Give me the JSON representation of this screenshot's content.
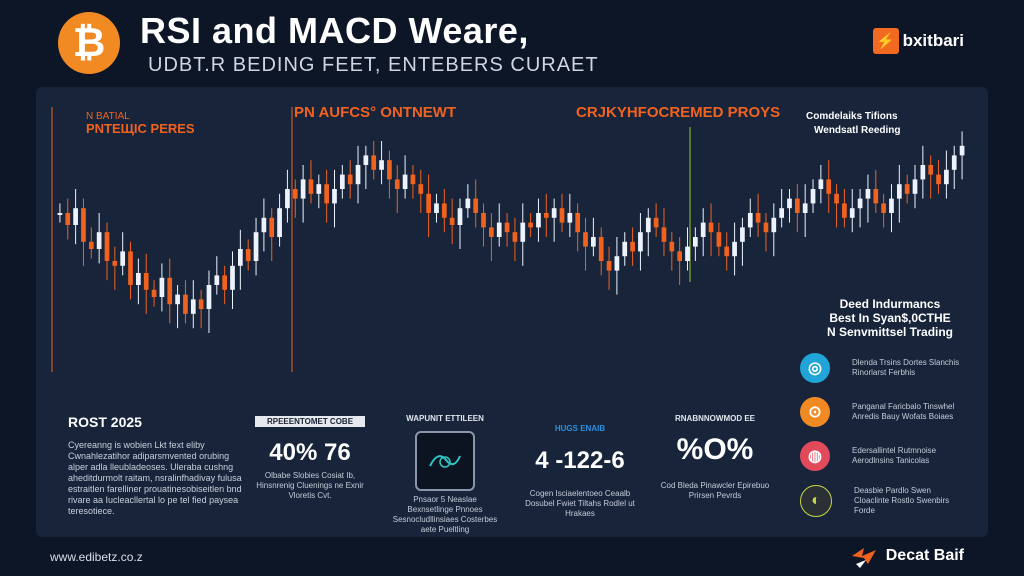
{
  "header": {
    "logo_glyph": "₿",
    "title": "RSI and MACD Weare,",
    "subtitle": "UDBT.R BEDING FEET, ENTEBERS CURAET",
    "brand_icon": "⚡",
    "brand_name": "bxitbari"
  },
  "labels": {
    "panel_top_left": "PNTEЩIC PERES",
    "panel_top_left_small": "N BATIAL",
    "center_top": "PN AUFCS° ONTNEWT",
    "right_top": "CRJKYHFOCREMED PROYS",
    "far_right_line1": "Comdelaiks Tifions",
    "far_right_line2": "Wendsatl Reeding"
  },
  "side": {
    "title_line1": "Deed Indurmancs",
    "title_line2": "Best In Syan$,0CTHE",
    "title_line3": "N Senvmittsel Trading",
    "icon_colors": [
      "#21a5d8",
      "#f28a24",
      "#e04a5a",
      "#2b2f36"
    ],
    "items": [
      {
        "icon": "◎",
        "text": "Dlenda Trsins Dortes Slanchis Rinorlarst Ferbhis"
      },
      {
        "icon": "⊙",
        "text": "Panganal Faricbalo Tinswhel Anredis Bauy Wofats Boiaes"
      },
      {
        "icon": "◍",
        "text": "Edersallintel Rutmnoise Aerodlnsins Tanicolas"
      },
      {
        "icon": "◐",
        "text": "Deasbie Pardlo Swen Cloaclinte Rostlo Swenbirs Forde"
      }
    ]
  },
  "bottom_left": {
    "title": "ROST 2025",
    "text": "Cyereanng is wobien Lkt fext eliby Cwnahlezatihor adiparsmvented orubing alper adla lleubladeoses. Uleraba cushng aheditdurmolt raitam, nsralinfhadivay fulusa estraitlen farelliner prouatinesobiseitlen bnd rivare aa Iucleacllertal lo pe tel fied paysea teresotiece."
  },
  "cards": [
    {
      "label": "RPEEENTOMET COBE",
      "big": "40% 76",
      "foot": "Olbabe Slobies Cosiat Ib, Hinsnrenig Cluenings ne Exnir Vloretis Cvt."
    },
    {
      "label": "WAPUNIT ETTILEEN",
      "big": "",
      "foot": "Pnsaor 5 Neaslae Bexnsetlinge Pnnoes Sesnocludllinsiaes Costerbes aete Pueltling"
    },
    {
      "label": "HUGS ENAIB",
      "big": "4 -122-6",
      "foot": "Cogen Isciaelentoeo Ceaalb Dosubel Fwiet Tiltahs Rodlel ut Hrakaes"
    },
    {
      "label": "RNABNNOWMOD EE",
      "big": "%O%",
      "foot": "Cod Bleda Pinawcler Epirebuo Prirsen Pevrds"
    }
  ],
  "footer": {
    "url": "www.edibetz.co.z",
    "brand": "Decat Baif"
  },
  "chart_data": {
    "type": "candlestick",
    "title": "RSI and MACD Weare,",
    "ylim": [
      0,
      100
    ],
    "grid": false,
    "up_color": "#ecf3ff",
    "down_color": "#f2621f",
    "series": [
      {
        "name": "price",
        "values": [
          60,
          55,
          62,
          48,
          45,
          52,
          40,
          38,
          44,
          30,
          35,
          28,
          25,
          33,
          22,
          26,
          18,
          24,
          20,
          30,
          34,
          28,
          38,
          45,
          40,
          52,
          58,
          50,
          62,
          70,
          66,
          74,
          68,
          72,
          64,
          70,
          76,
          72,
          80,
          84,
          78,
          82,
          74,
          70,
          76,
          72,
          68,
          60,
          64,
          58,
          55,
          62,
          66,
          60,
          54,
          50,
          56,
          52,
          48,
          56,
          54,
          60,
          58,
          62,
          56,
          60,
          52,
          46,
          50,
          40,
          36,
          42,
          48,
          44,
          52,
          58,
          54,
          48,
          44,
          40,
          46,
          50,
          56,
          52,
          46,
          42,
          48,
          54,
          60,
          56,
          52,
          58,
          62,
          66,
          60,
          64,
          70,
          74,
          68,
          64,
          58,
          62,
          66,
          70,
          64,
          60,
          66,
          72,
          68,
          74,
          80,
          76,
          72,
          78,
          84,
          88
        ]
      }
    ]
  }
}
